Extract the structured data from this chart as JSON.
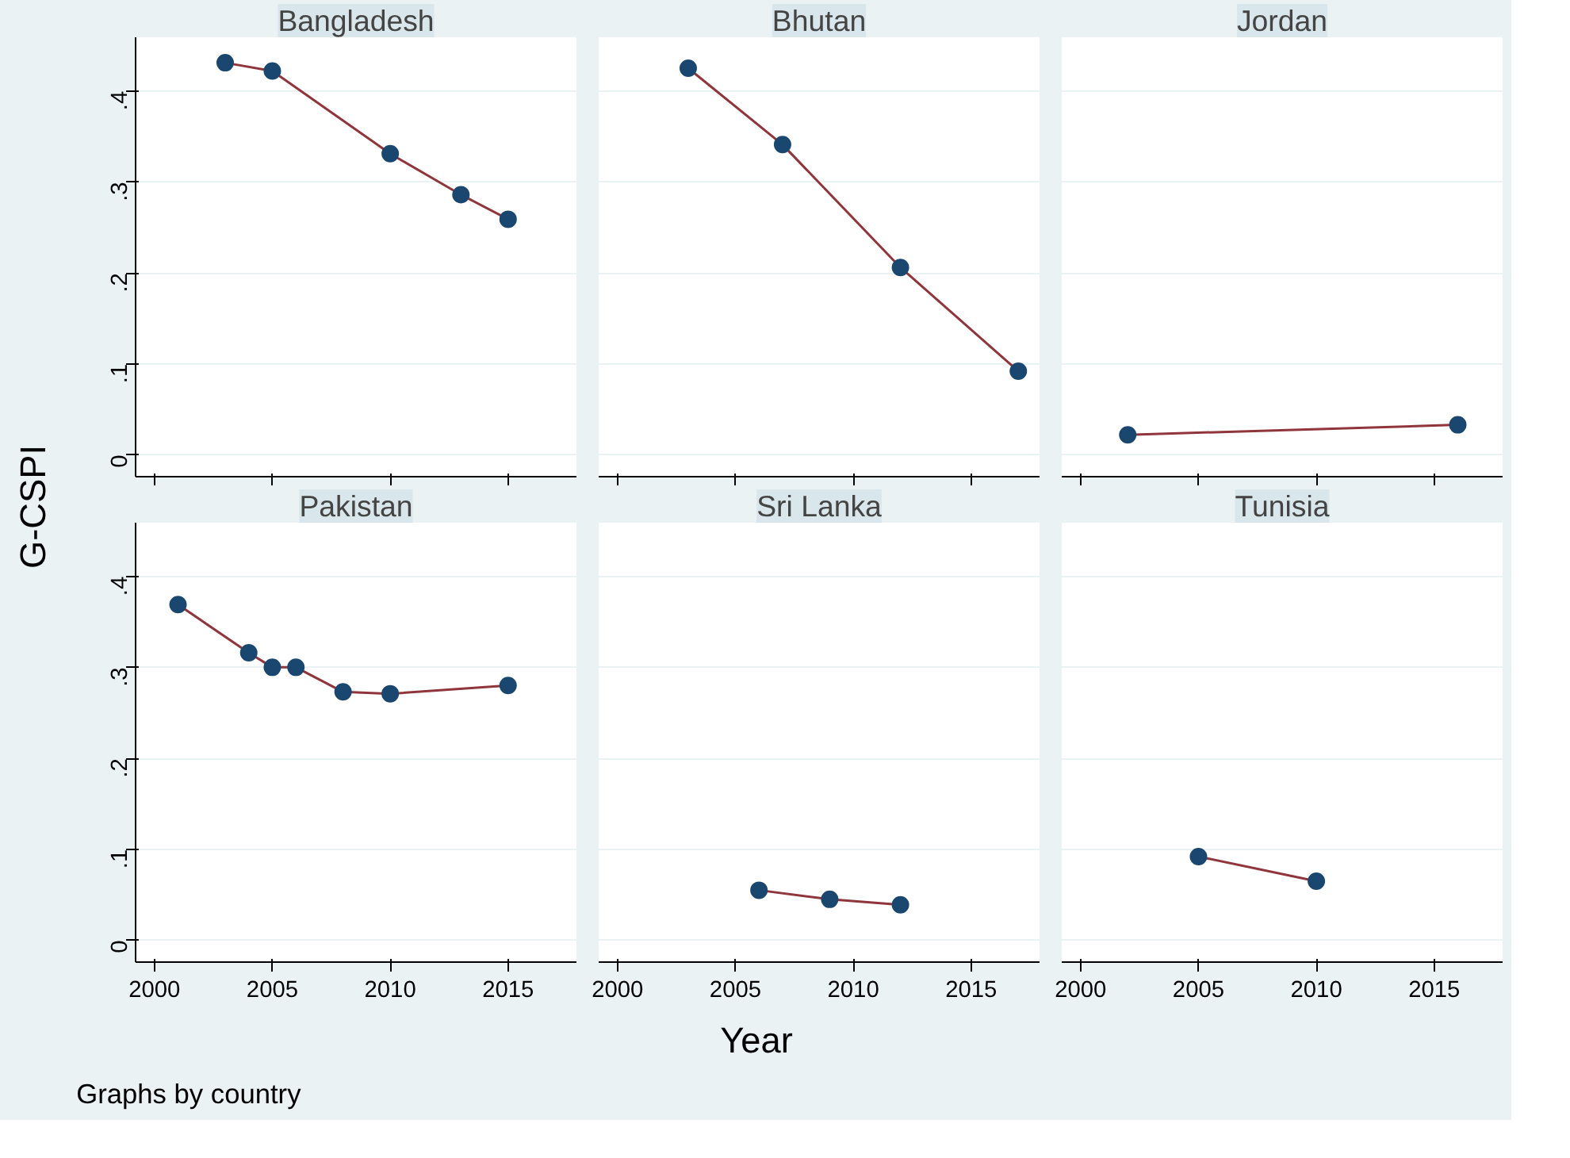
{
  "chart_data": [
    {
      "type": "line",
      "title": "Bangladesh",
      "ylabel": "G-CSPI",
      "xlim": [
        1999.2,
        2017.9
      ],
      "ylim": [
        -0.024,
        0.459
      ],
      "xticks": [
        2000,
        2005,
        2010,
        2015
      ],
      "yticks": [
        {
          "value": 0,
          "label": "0"
        },
        {
          "value": 0.1,
          "label": ".1"
        },
        {
          "value": 0.2,
          "label": ".2"
        },
        {
          "value": 0.3,
          "label": ".3"
        },
        {
          "value": 0.4,
          "label": ".4"
        }
      ],
      "grid": "y",
      "tick_labels": "y",
      "x": [
        2003,
        2005,
        2010,
        2013,
        2015
      ],
      "series": [
        {
          "color": "#90353b",
          "marker": "none",
          "values": [
            0.431,
            0.422,
            0.331,
            0.286,
            0.259
          ]
        },
        {
          "type": "scatter",
          "color": "#1a476f",
          "marker": "circle",
          "values": [
            0.431,
            0.422,
            0.331,
            0.286,
            0.259
          ]
        }
      ]
    },
    {
      "type": "line",
      "title": "Bhutan",
      "xlim": [
        1999.2,
        2017.9
      ],
      "ylim": [
        -0.024,
        0.459
      ],
      "xticks": [
        2000,
        2005,
        2010,
        2015
      ],
      "yticks": [
        0,
        0.1,
        0.2,
        0.3,
        0.4
      ],
      "grid": "y",
      "tick_labels": false,
      "x": [
        2003,
        2007,
        2012,
        2017
      ],
      "series": [
        {
          "color": "#90353b",
          "marker": "none",
          "values": [
            0.425,
            0.341,
            0.206,
            0.092
          ]
        },
        {
          "type": "scatter",
          "color": "#1a476f",
          "marker": "circle",
          "values": [
            0.425,
            0.341,
            0.206,
            0.092
          ]
        }
      ]
    },
    {
      "type": "line",
      "title": "Jordan",
      "xlim": [
        1999.2,
        2017.9
      ],
      "ylim": [
        -0.024,
        0.459
      ],
      "xticks": [
        2000,
        2005,
        2010,
        2015
      ],
      "yticks": [
        0,
        0.1,
        0.2,
        0.3,
        0.4
      ],
      "grid": "y",
      "tick_labels": false,
      "x": [
        2002,
        2016
      ],
      "series": [
        {
          "color": "#90353b",
          "marker": "none",
          "values": [
            0.022,
            0.033
          ]
        },
        {
          "type": "scatter",
          "color": "#1a476f",
          "marker": "circle",
          "values": [
            0.022,
            0.033
          ]
        }
      ]
    },
    {
      "type": "line",
      "title": "Pakistan",
      "annotations": [
        "Graphs by country"
      ],
      "xlim": [
        1999.2,
        2017.9
      ],
      "ylim": [
        -0.024,
        0.459
      ],
      "xticks": [
        2000,
        2005,
        2010,
        2015
      ],
      "yticks": [
        {
          "value": 0,
          "label": "0"
        },
        {
          "value": 0.1,
          "label": ".1"
        },
        {
          "value": 0.2,
          "label": ".2"
        },
        {
          "value": 0.3,
          "label": ".3"
        },
        {
          "value": 0.4,
          "label": ".4"
        }
      ],
      "grid": "y",
      "x": [
        2001,
        2004,
        2005,
        2006,
        2008,
        2010,
        2015
      ],
      "series": [
        {
          "color": "#90353b",
          "marker": "none",
          "values": [
            0.369,
            0.316,
            0.3,
            0.3,
            0.273,
            0.271,
            0.28
          ]
        },
        {
          "type": "scatter",
          "color": "#1a476f",
          "marker": "circle",
          "values": [
            0.369,
            0.316,
            0.3,
            0.3,
            0.273,
            0.271,
            0.28
          ]
        }
      ]
    },
    {
      "type": "line",
      "title": "Sri Lanka",
      "xlabel": "Year",
      "xlim": [
        1999.2,
        2017.9
      ],
      "ylim": [
        -0.024,
        0.459
      ],
      "xticks": [
        2000,
        2005,
        2010,
        2015
      ],
      "yticks": [
        0,
        0.1,
        0.2,
        0.3,
        0.4
      ],
      "grid": "y",
      "tick_labels": "x",
      "x": [
        2006,
        2009,
        2012
      ],
      "series": [
        {
          "color": "#90353b",
          "marker": "none",
          "values": [
            0.055,
            0.045,
            0.039
          ]
        },
        {
          "type": "scatter",
          "color": "#1a476f",
          "marker": "circle",
          "values": [
            0.055,
            0.045,
            0.039
          ]
        }
      ]
    },
    {
      "type": "line",
      "title": "Tunisia",
      "xlim": [
        1999.2,
        2017.9
      ],
      "ylim": [
        -0.024,
        0.459
      ],
      "xticks": [
        2000,
        2005,
        2010,
        2015
      ],
      "yticks": [
        0,
        0.1,
        0.2,
        0.3,
        0.4
      ],
      "grid": "y",
      "tick_labels": "x",
      "x": [
        2005,
        2010
      ],
      "series": [
        {
          "color": "#90353b",
          "marker": "none",
          "values": [
            0.092,
            0.065
          ]
        },
        {
          "type": "scatter",
          "color": "#1a476f",
          "marker": "circle",
          "values": [
            0.092,
            0.065
          ]
        }
      ]
    }
  ]
}
